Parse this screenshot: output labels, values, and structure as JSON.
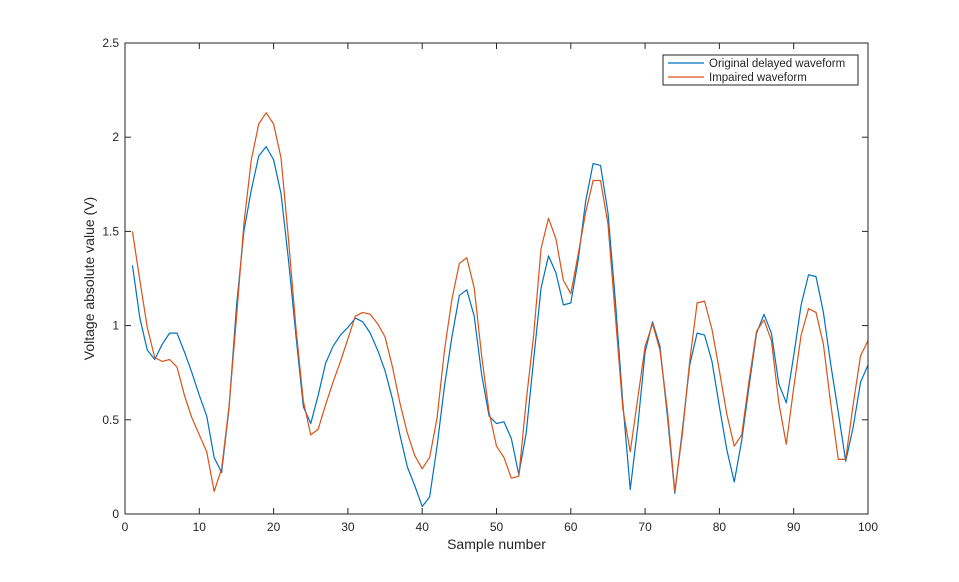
{
  "chart_data": {
    "type": "line",
    "title": "",
    "xlabel": "Sample number",
    "ylabel": "Voltage absolute value (V)",
    "xlim": [
      0,
      100
    ],
    "ylim": [
      0,
      2.5
    ],
    "xticks": [
      0,
      10,
      20,
      30,
      40,
      50,
      60,
      70,
      80,
      90,
      100
    ],
    "xtick_labels": [
      "0",
      "10",
      "20",
      "30",
      "40",
      "50",
      "60",
      "70",
      "80",
      "90",
      "100"
    ],
    "yticks": [
      0,
      0.5,
      1,
      1.5,
      2,
      2.5
    ],
    "ytick_labels": [
      "0",
      "0.5",
      "1",
      "1.5",
      "2",
      "2.5"
    ],
    "grid": false,
    "legend_position": "top-right",
    "x": [
      1,
      2,
      3,
      4,
      5,
      6,
      7,
      8,
      9,
      10,
      11,
      12,
      13,
      14,
      15,
      16,
      17,
      18,
      19,
      20,
      21,
      22,
      23,
      24,
      25,
      26,
      27,
      28,
      29,
      30,
      31,
      32,
      33,
      34,
      35,
      36,
      37,
      38,
      39,
      40,
      41,
      42,
      43,
      44,
      45,
      46,
      47,
      48,
      49,
      50,
      51,
      52,
      53,
      54,
      55,
      56,
      57,
      58,
      59,
      60,
      61,
      62,
      63,
      64,
      65,
      66,
      67,
      68,
      69,
      70,
      71,
      72,
      73,
      74,
      75,
      76,
      77,
      78,
      79,
      80,
      81,
      82,
      83,
      84,
      85,
      86,
      87,
      88,
      89,
      90,
      91,
      92,
      93,
      94,
      95,
      96,
      97,
      98,
      99,
      100
    ],
    "series": [
      {
        "name": "Original delayed waveform",
        "color": "#0072BD",
        "values": [
          1.32,
          1.04,
          0.87,
          0.82,
          0.9,
          0.96,
          0.96,
          0.86,
          0.75,
          0.63,
          0.52,
          0.3,
          0.22,
          0.56,
          1.1,
          1.5,
          1.72,
          1.9,
          1.95,
          1.88,
          1.7,
          1.35,
          0.95,
          0.57,
          0.48,
          0.63,
          0.8,
          0.89,
          0.95,
          0.99,
          1.04,
          1.02,
          0.96,
          0.87,
          0.76,
          0.61,
          0.42,
          0.25,
          0.15,
          0.04,
          0.09,
          0.36,
          0.68,
          0.94,
          1.16,
          1.19,
          1.05,
          0.74,
          0.52,
          0.48,
          0.49,
          0.4,
          0.21,
          0.43,
          0.82,
          1.2,
          1.37,
          1.28,
          1.11,
          1.12,
          1.35,
          1.66,
          1.86,
          1.85,
          1.6,
          1.13,
          0.59,
          0.13,
          0.46,
          0.86,
          1.02,
          0.89,
          0.52,
          0.11,
          0.44,
          0.79,
          0.96,
          0.95,
          0.81,
          0.57,
          0.34,
          0.17,
          0.39,
          0.68,
          0.96,
          1.06,
          0.96,
          0.69,
          0.59,
          0.84,
          1.11,
          1.27,
          1.26,
          1.07,
          0.79,
          0.54,
          0.28,
          0.46,
          0.7,
          0.79
        ]
      },
      {
        "name": "Impaired waveform",
        "color": "#D95319",
        "values": [
          1.5,
          1.24,
          0.99,
          0.83,
          0.81,
          0.82,
          0.78,
          0.63,
          0.51,
          0.42,
          0.33,
          0.12,
          0.24,
          0.57,
          1.04,
          1.54,
          1.88,
          2.07,
          2.13,
          2.07,
          1.89,
          1.46,
          0.99,
          0.6,
          0.42,
          0.45,
          0.58,
          0.7,
          0.81,
          0.93,
          1.05,
          1.07,
          1.06,
          1.01,
          0.94,
          0.78,
          0.59,
          0.43,
          0.31,
          0.24,
          0.3,
          0.51,
          0.87,
          1.14,
          1.33,
          1.36,
          1.2,
          0.84,
          0.54,
          0.36,
          0.3,
          0.19,
          0.2,
          0.6,
          0.95,
          1.41,
          1.57,
          1.46,
          1.24,
          1.17,
          1.38,
          1.6,
          1.77,
          1.77,
          1.54,
          1.05,
          0.56,
          0.33,
          0.61,
          0.89,
          1.01,
          0.87,
          0.55,
          0.12,
          0.42,
          0.81,
          1.12,
          1.13,
          0.98,
          0.76,
          0.53,
          0.36,
          0.42,
          0.71,
          0.97,
          1.03,
          0.92,
          0.59,
          0.37,
          0.67,
          0.95,
          1.09,
          1.07,
          0.9,
          0.58,
          0.29,
          0.29,
          0.58,
          0.84,
          0.92
        ]
      }
    ]
  }
}
